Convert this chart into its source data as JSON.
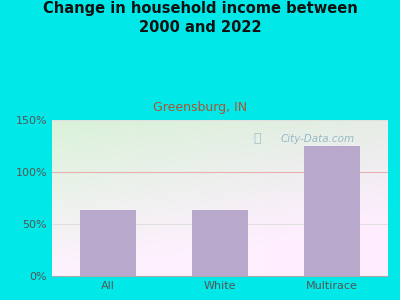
{
  "title": "Change in household income between\n2000 and 2022",
  "subtitle": "Greensburg, IN",
  "categories": [
    "All",
    "White",
    "Multirace"
  ],
  "values": [
    63,
    63,
    125
  ],
  "bar_color": "#b8a8cc",
  "background_color": "#00e8e8",
  "title_color": "#111111",
  "subtitle_color": "#aa5533",
  "tick_color": "#555555",
  "grid_color_100": "#e8b0b0",
  "grid_color_other": "#e0e0e0",
  "ylim": [
    0,
    150
  ],
  "yticks": [
    0,
    50,
    100,
    150
  ],
  "ytick_labels": [
    "0%",
    "50%",
    "100%",
    "150%"
  ],
  "watermark": "City-Data.com",
  "watermark_color": "#8ab0c0"
}
